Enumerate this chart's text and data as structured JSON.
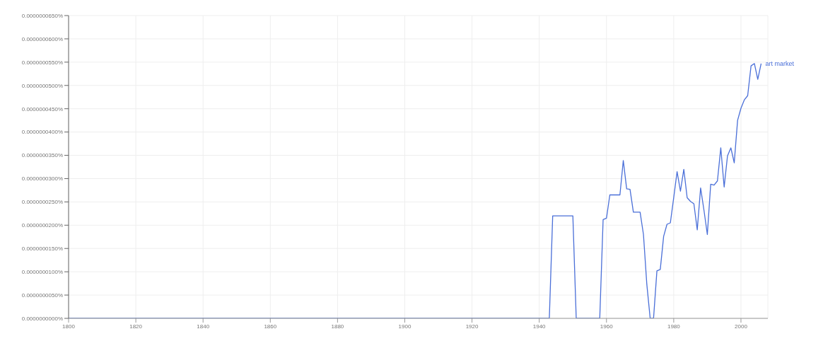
{
  "chart_data": {
    "type": "line",
    "x": [
      1800,
      1943,
      1944,
      1950,
      1951,
      1958,
      1959,
      1960,
      1961,
      1964,
      1965,
      1966,
      1967,
      1968,
      1970,
      1971,
      1972,
      1973,
      1974,
      1975,
      1976,
      1977,
      1978,
      1979,
      1980,
      1981,
      1982,
      1983,
      1984,
      1985,
      1986,
      1987,
      1988,
      1989,
      1990,
      1991,
      1992,
      1993,
      1994,
      1995,
      1996,
      1997,
      1998,
      1999,
      2000,
      2001,
      2002,
      2003,
      2004,
      2005,
      2006
    ],
    "series": [
      {
        "name": "art market",
        "color": "#4a6fd8",
        "values": [
          0,
          0,
          2.2e-08,
          2.2e-08,
          0,
          0,
          2.12e-08,
          2.15e-08,
          2.65e-08,
          2.65e-08,
          3.39e-08,
          2.78e-08,
          2.77e-08,
          2.28e-08,
          2.28e-08,
          1.8e-08,
          7.3e-09,
          0,
          0,
          1.02e-08,
          1.05e-08,
          1.76e-08,
          2.02e-08,
          2.05e-08,
          2.59e-08,
          3.15e-08,
          2.73e-08,
          3.2e-08,
          2.59e-08,
          2.51e-08,
          2.46e-08,
          1.9e-08,
          2.8e-08,
          2.32e-08,
          1.8e-08,
          2.88e-08,
          2.86e-08,
          2.95e-08,
          3.66e-08,
          2.82e-08,
          3.49e-08,
          3.66e-08,
          3.34e-08,
          4.25e-08,
          4.51e-08,
          4.69e-08,
          4.78e-08,
          5.42e-08,
          5.47e-08,
          5.13e-08,
          5.47e-08
        ]
      }
    ],
    "xlim": [
      1800,
      2008
    ],
    "xticks": [
      1800,
      1820,
      1840,
      1860,
      1880,
      1900,
      1920,
      1940,
      1960,
      1980,
      2000
    ],
    "ylim": [
      0,
      6.5e-08
    ],
    "yticks": [
      {
        "value": 0,
        "label": "0.0000000000%"
      },
      {
        "value": 5e-09,
        "label": "0.0000000050%"
      },
      {
        "value": 1e-08,
        "label": "0.0000000100%"
      },
      {
        "value": 1.5e-08,
        "label": "0.0000000150%"
      },
      {
        "value": 2e-08,
        "label": "0.0000000200%"
      },
      {
        "value": 2.5e-08,
        "label": "0.0000000250%"
      },
      {
        "value": 3e-08,
        "label": "0.0000000300%"
      },
      {
        "value": 3.5e-08,
        "label": "0.0000000350%"
      },
      {
        "value": 4e-08,
        "label": "0.0000000400%"
      },
      {
        "value": 4.5e-08,
        "label": "0.0000000450%"
      },
      {
        "value": 5e-08,
        "label": "0.0000000500%"
      },
      {
        "value": 5.5e-08,
        "label": "0.0000000550%"
      },
      {
        "value": 6e-08,
        "label": "0.0000000600%"
      },
      {
        "value": 6.5e-08,
        "label": "0.0000000650%"
      }
    ],
    "grid": true,
    "legend": false,
    "marker": "none",
    "line_style": "solid"
  }
}
